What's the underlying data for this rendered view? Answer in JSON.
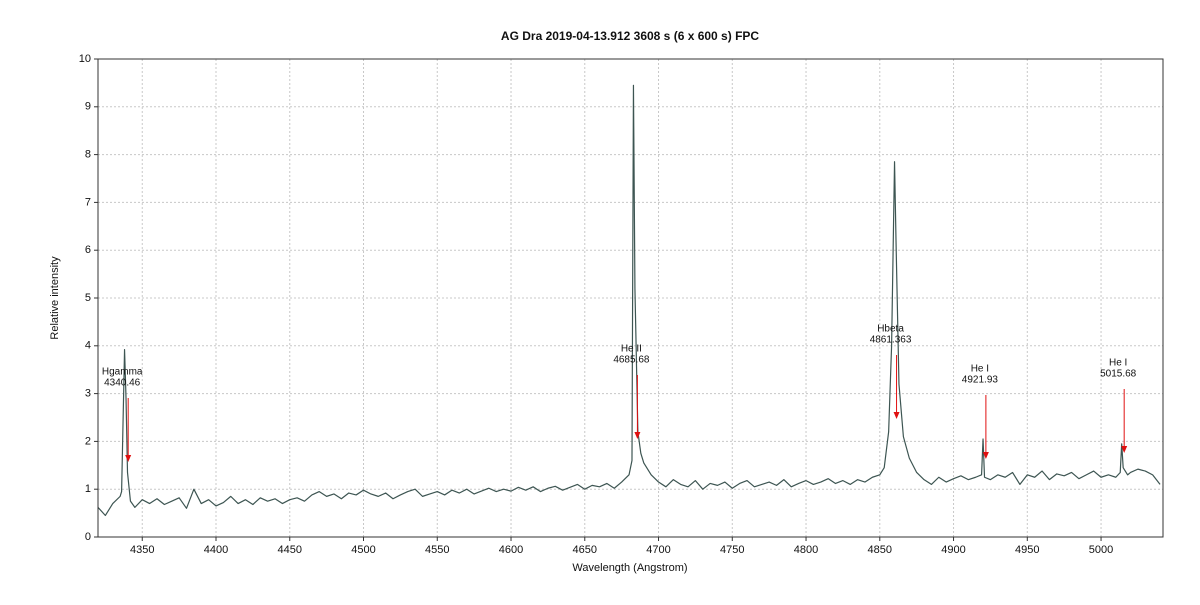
{
  "chart_data": {
    "type": "line",
    "title": "AG Dra    2019-04-13.912   3608 s (6 x 600 s)   FPC",
    "x_label": "Wavelength (Angstrom)",
    "y_label": "Relative intensity",
    "xlim": [
      4320,
      5042
    ],
    "ylim": [
      0,
      10
    ],
    "xticks": [
      4350,
      4400,
      4450,
      4500,
      4550,
      4600,
      4650,
      4700,
      4750,
      4800,
      4850,
      4900,
      4950,
      5000
    ],
    "yticks": [
      0,
      1,
      2,
      3,
      4,
      5,
      6,
      7,
      8,
      9,
      10
    ],
    "grid": true,
    "series": [
      {
        "color": "#3d5552",
        "x": [
          4320,
          4325,
          4330,
          4335,
          4336,
          4338,
          4339,
          4340,
          4342,
          4345,
          4350,
          4355,
          4360,
          4365,
          4370,
          4375,
          4380,
          4385,
          4390,
          4395,
          4400,
          4405,
          4410,
          4415,
          4420,
          4425,
          4430,
          4435,
          4440,
          4445,
          4450,
          4455,
          4460,
          4465,
          4470,
          4475,
          4480,
          4485,
          4490,
          4495,
          4500,
          4505,
          4510,
          4515,
          4520,
          4525,
          4530,
          4535,
          4540,
          4545,
          4550,
          4555,
          4560,
          4565,
          4570,
          4575,
          4580,
          4585,
          4590,
          4595,
          4600,
          4605,
          4610,
          4615,
          4620,
          4625,
          4630,
          4635,
          4640,
          4645,
          4650,
          4655,
          4660,
          4665,
          4670,
          4675,
          4680,
          4682,
          4683,
          4684,
          4686,
          4688,
          4690,
          4695,
          4700,
          4705,
          4710,
          4715,
          4720,
          4725,
          4730,
          4735,
          4740,
          4745,
          4750,
          4755,
          4760,
          4765,
          4770,
          4775,
          4780,
          4785,
          4790,
          4795,
          4800,
          4805,
          4810,
          4815,
          4820,
          4825,
          4830,
          4835,
          4840,
          4845,
          4850,
          4853,
          4856,
          4858,
          4860,
          4861,
          4863,
          4866,
          4870,
          4875,
          4880,
          4885,
          4890,
          4895,
          4900,
          4905,
          4910,
          4915,
          4919,
          4920,
          4921,
          4925,
          4930,
          4935,
          4940,
          4945,
          4950,
          4955,
          4960,
          4965,
          4970,
          4975,
          4980,
          4985,
          4990,
          4995,
          5000,
          5005,
          5010,
          5013,
          5014,
          5015,
          5018,
          5020,
          5025,
          5030,
          5035,
          5040
        ],
        "values": [
          0.62,
          0.45,
          0.7,
          0.85,
          0.95,
          3.92,
          2.9,
          1.35,
          0.75,
          0.62,
          0.78,
          0.7,
          0.8,
          0.68,
          0.75,
          0.82,
          0.6,
          1.0,
          0.7,
          0.78,
          0.65,
          0.72,
          0.85,
          0.7,
          0.78,
          0.68,
          0.82,
          0.75,
          0.8,
          0.7,
          0.78,
          0.82,
          0.75,
          0.88,
          0.95,
          0.85,
          0.9,
          0.8,
          0.92,
          0.88,
          0.98,
          0.9,
          0.85,
          0.92,
          0.8,
          0.88,
          0.95,
          1.0,
          0.85,
          0.9,
          0.95,
          0.88,
          0.98,
          0.92,
          1.0,
          0.9,
          0.96,
          1.02,
          0.95,
          1.0,
          0.96,
          1.04,
          0.98,
          1.05,
          0.95,
          1.02,
          1.06,
          0.98,
          1.04,
          1.1,
          1.0,
          1.08,
          1.05,
          1.12,
          1.02,
          1.15,
          1.3,
          1.6,
          9.45,
          5.2,
          2.2,
          1.75,
          1.55,
          1.3,
          1.15,
          1.05,
          1.2,
          1.1,
          1.05,
          1.18,
          1.0,
          1.12,
          1.08,
          1.15,
          1.02,
          1.12,
          1.18,
          1.05,
          1.1,
          1.15,
          1.08,
          1.2,
          1.05,
          1.12,
          1.18,
          1.1,
          1.15,
          1.22,
          1.12,
          1.18,
          1.1,
          1.2,
          1.15,
          1.25,
          1.3,
          1.45,
          2.2,
          4.0,
          7.85,
          6.2,
          3.2,
          2.1,
          1.65,
          1.35,
          1.2,
          1.1,
          1.25,
          1.15,
          1.22,
          1.28,
          1.2,
          1.25,
          1.3,
          2.05,
          1.25,
          1.2,
          1.3,
          1.25,
          1.35,
          1.1,
          1.3,
          1.25,
          1.38,
          1.2,
          1.32,
          1.28,
          1.35,
          1.22,
          1.3,
          1.38,
          1.25,
          1.3,
          1.25,
          1.35,
          1.95,
          1.45,
          1.3,
          1.35,
          1.42,
          1.38,
          1.3,
          1.1
        ]
      }
    ],
    "annotations": [
      {
        "text": "Hgamma",
        "wavelength": 4340.46
      },
      {
        "text": "He II",
        "wavelength": 4685.68
      },
      {
        "text": "Hbeta",
        "wavelength": 4861.363
      },
      {
        "text": "He I",
        "wavelength": 4921.93
      },
      {
        "text": "He I",
        "wavelength": 5015.68
      }
    ],
    "annotation_color": "#e01010"
  }
}
